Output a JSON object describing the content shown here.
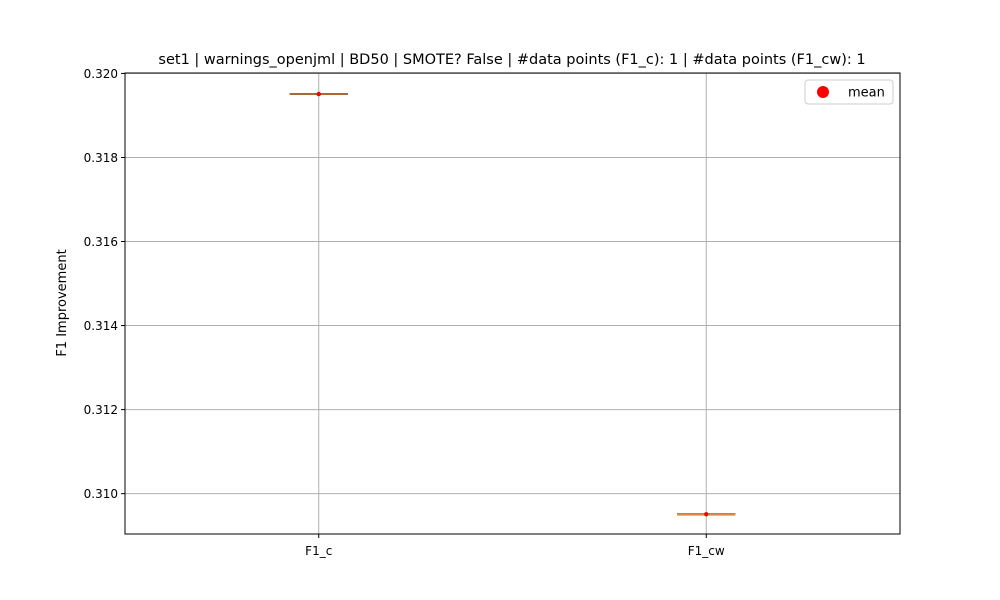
{
  "chart_data": {
    "type": "box",
    "title": "set1 | warnings_openjml | BD50 | SMOTE? False | #data points (F1_c): 1 | #data points (F1_cw): 1",
    "xlabel": "",
    "ylabel": "F1 Improvement",
    "categories": [
      "F1_c",
      "F1_cw"
    ],
    "values": [
      0.31951,
      0.30951
    ],
    "mean": [
      0.31951,
      0.30951
    ],
    "ylim": [
      0.30904,
      0.32001
    ],
    "yticks": [
      0.31,
      0.312,
      0.314,
      0.316,
      0.318,
      0.32
    ],
    "ytick_labels": [
      "0.310",
      "0.312",
      "0.314",
      "0.316",
      "0.318",
      "0.320"
    ],
    "grid": true,
    "legend": {
      "position": "top-right",
      "entries": [
        {
          "label": "mean",
          "marker": "circle",
          "color": "#ff0000"
        }
      ]
    },
    "colors": {
      "median": "#e08a4a",
      "box": "#000000",
      "mean": "#ff0000",
      "grid": "#b0b0b0"
    }
  }
}
